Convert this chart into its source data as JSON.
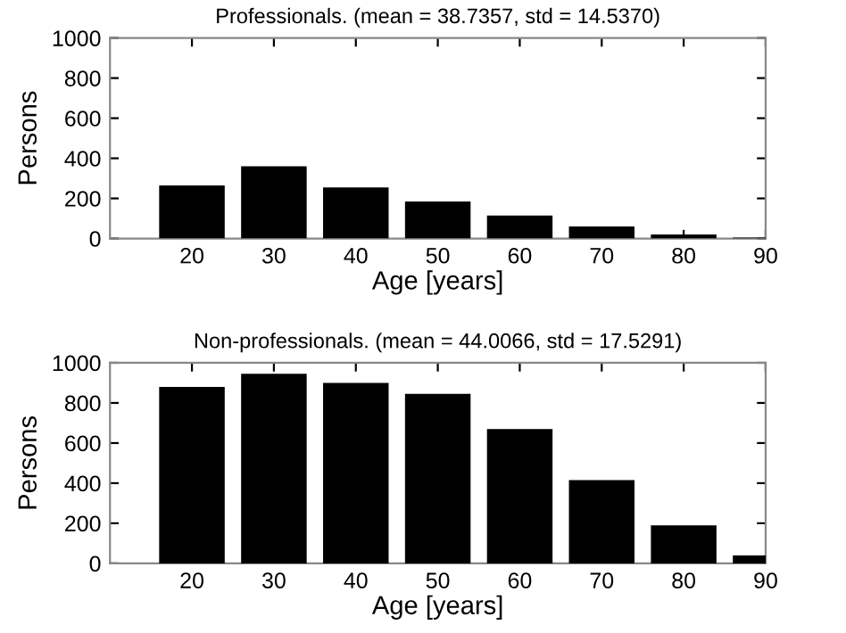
{
  "chart_data": [
    {
      "type": "bar",
      "title": "Professionals. (mean = 38.7357, std = 14.5370)",
      "xlabel": "Age [years]",
      "ylabel": "Persons",
      "x": [
        20,
        30,
        40,
        50,
        60,
        70,
        80,
        90
      ],
      "series": [
        {
          "color": "#000000",
          "values": [
            265,
            360,
            255,
            185,
            115,
            60,
            20,
            5
          ]
        }
      ],
      "xlim": [
        10,
        90
      ],
      "xticks": [
        20,
        30,
        40,
        50,
        60,
        70,
        80,
        90
      ],
      "ylim": [
        0,
        1000
      ],
      "yticks": [
        0,
        200,
        400,
        600,
        800,
        1000
      ],
      "grid": false
    },
    {
      "type": "bar",
      "title": "Non-professionals. (mean = 44.0066, std = 17.5291)",
      "xlabel": "Age [years]",
      "ylabel": "Persons",
      "x": [
        20,
        30,
        40,
        50,
        60,
        70,
        80,
        90
      ],
      "series": [
        {
          "color": "#000000",
          "values": [
            880,
            945,
            900,
            845,
            670,
            415,
            190,
            40
          ]
        }
      ],
      "xlim": [
        10,
        90
      ],
      "xticks": [
        20,
        30,
        40,
        50,
        60,
        70,
        80,
        90
      ],
      "ylim": [
        0,
        1000
      ],
      "yticks": [
        0,
        200,
        400,
        600,
        800,
        1000
      ],
      "grid": false
    }
  ]
}
